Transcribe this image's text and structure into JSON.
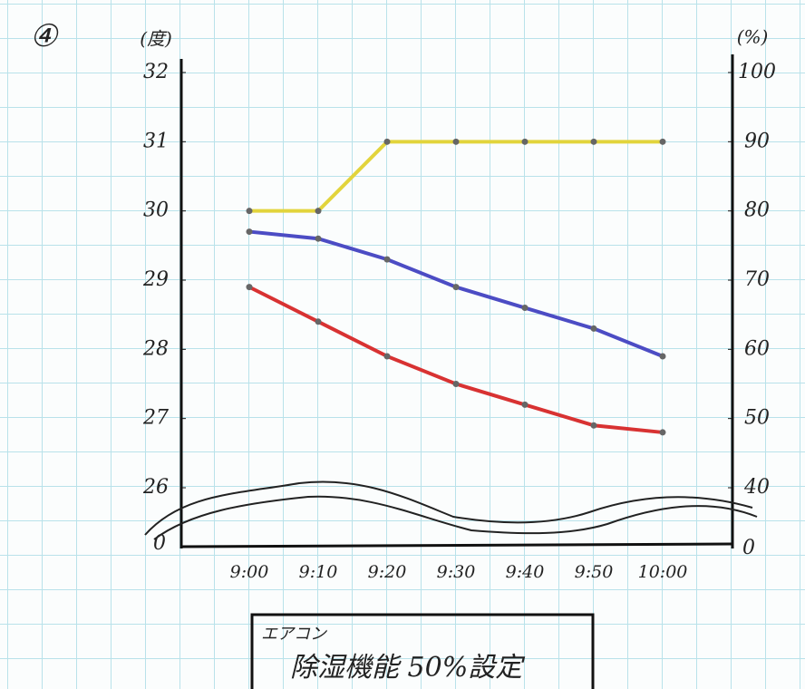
{
  "chart_data": {
    "type": "line",
    "marker": "④",
    "ylabel": "(度)",
    "y2label": "(%)",
    "ylim": [
      26,
      32
    ],
    "yticks": [
      26,
      27,
      28,
      29,
      30,
      31,
      32
    ],
    "y2lim": [
      40,
      100
    ],
    "y2ticks": [
      40,
      50,
      60,
      70,
      80,
      90,
      100
    ],
    "axis_break_labels": [
      "0",
      "0"
    ],
    "categories": [
      "9:00",
      "9:10",
      "9:20",
      "9:30",
      "9:40",
      "9:50",
      "10:00"
    ],
    "series": [
      {
        "color": "#e2d43c",
        "values": [
          30,
          30,
          31,
          31,
          31,
          31,
          31
        ]
      },
      {
        "color": "#4c4cc4",
        "values": [
          29.7,
          29.6,
          29.3,
          28.9,
          28.6,
          28.3,
          27.9
        ]
      },
      {
        "color": "#d83232",
        "values": [
          28.9,
          28.4,
          27.9,
          27.5,
          27.2,
          26.9,
          26.8
        ]
      }
    ],
    "note": {
      "small": "エアコン",
      "main": "除湿機能 50%設定"
    }
  }
}
